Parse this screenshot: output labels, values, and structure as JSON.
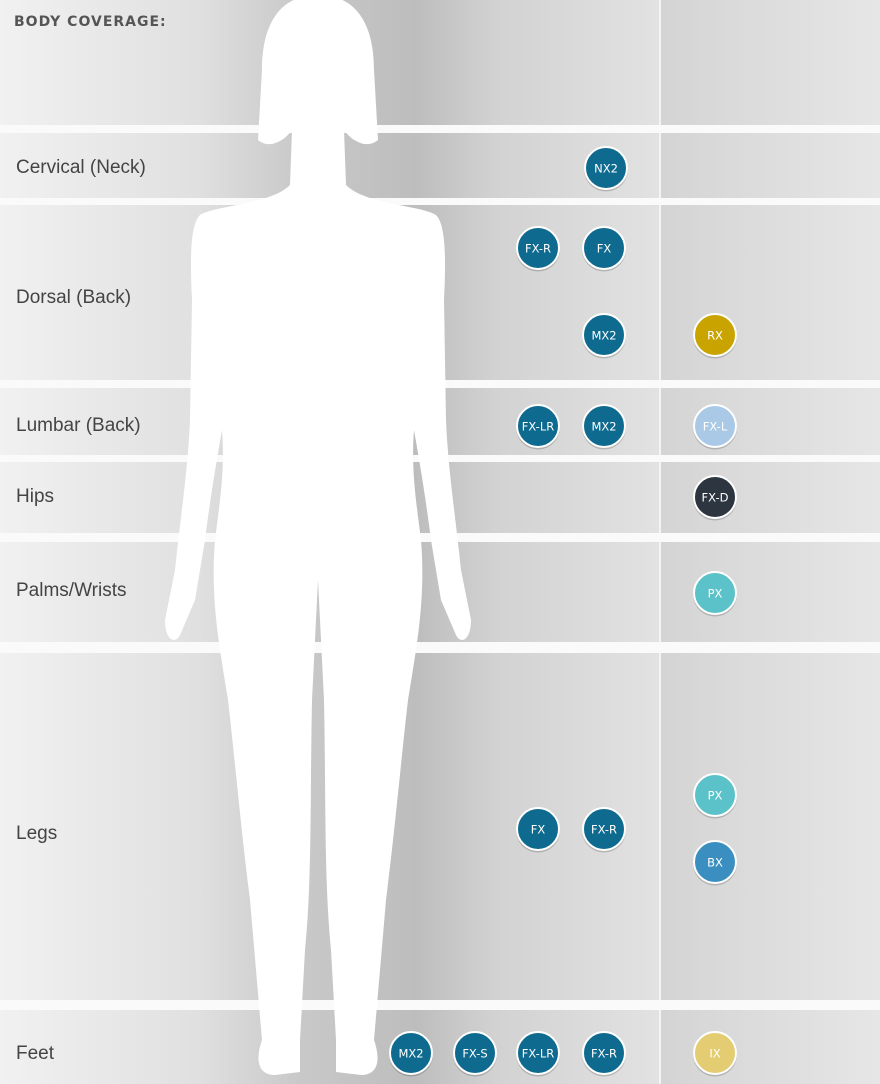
{
  "header": {
    "title": "BODY COVERAGE:"
  },
  "rows": [
    {
      "label": "Cervical (Neck)",
      "badges": [
        {
          "text": "NX2",
          "color": "#0e6a8f"
        }
      ]
    },
    {
      "label": "Dorsal (Back)",
      "badges": [
        {
          "text": "FX-R",
          "color": "#0e6a8f"
        },
        {
          "text": "FX",
          "color": "#0e6a8f"
        },
        {
          "text": "MX2",
          "color": "#0e6a8f"
        },
        {
          "text": "RX",
          "color": "#c9a400"
        }
      ]
    },
    {
      "label": "Lumbar (Back)",
      "badges": [
        {
          "text": "FX-LR",
          "color": "#0e6a8f"
        },
        {
          "text": "MX2",
          "color": "#0e6a8f"
        },
        {
          "text": "FX-L",
          "color": "#a9c9e6"
        }
      ]
    },
    {
      "label": "Hips",
      "badges": [
        {
          "text": "FX-D",
          "color": "#2c3540"
        }
      ]
    },
    {
      "label": "Palms/Wrists",
      "badges": [
        {
          "text": "PX",
          "color": "#5bc2c9"
        }
      ]
    },
    {
      "label": "Legs",
      "badges": [
        {
          "text": "FX",
          "color": "#0e6a8f"
        },
        {
          "text": "FX-R",
          "color": "#0e6a8f"
        },
        {
          "text": "PX",
          "color": "#5bc2c9"
        },
        {
          "text": "BX",
          "color": "#3a8fc0"
        }
      ]
    },
    {
      "label": "Feet",
      "badges": [
        {
          "text": "MX2",
          "color": "#0e6a8f"
        },
        {
          "text": "FX-S",
          "color": "#0e6a8f"
        },
        {
          "text": "FX-LR",
          "color": "#0e6a8f"
        },
        {
          "text": "FX-R",
          "color": "#0e6a8f"
        },
        {
          "text": "IX",
          "color": "#e3cc72"
        }
      ]
    }
  ]
}
